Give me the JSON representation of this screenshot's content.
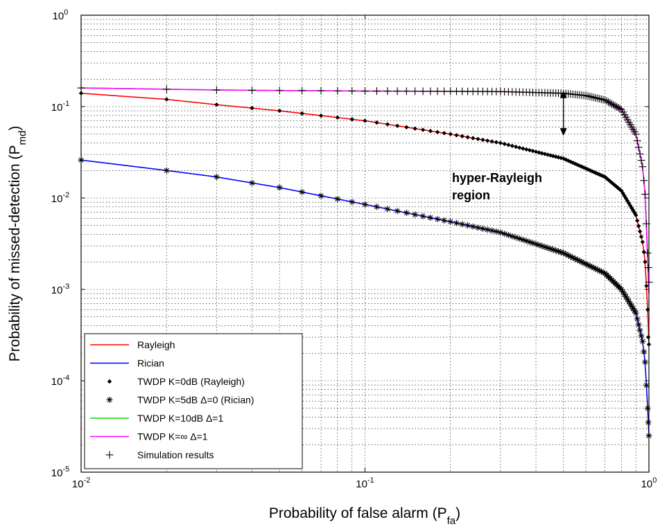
{
  "chart_data": {
    "type": "line",
    "xscale": "log",
    "yscale": "log",
    "xlim": [
      0.01,
      1
    ],
    "ylim": [
      1e-05,
      1
    ],
    "grid": true,
    "legend_position": "bottom-left",
    "xlabel_main": "Probability of false alarm (P",
    "xlabel_sub": "fa",
    "xlabel_end": ")",
    "ylabel_main": "Probability of missed-detection (P",
    "ylabel_sub": "md",
    "ylabel_end": ")",
    "x_ticks": [
      {
        "base": "10",
        "exp": "-2"
      },
      {
        "base": "10",
        "exp": "-1"
      },
      {
        "base": "10",
        "exp": "0"
      }
    ],
    "y_ticks": [
      {
        "base": "10",
        "exp": "0"
      },
      {
        "base": "10",
        "exp": "-1"
      },
      {
        "base": "10",
        "exp": "-2"
      },
      {
        "base": "10",
        "exp": "-3"
      },
      {
        "base": "10",
        "exp": "-4"
      },
      {
        "base": "10",
        "exp": "-5"
      }
    ],
    "annotation": {
      "line1": "hyper-Rayleigh",
      "line2": "region",
      "arrow_x": 0.5,
      "arrow_y_top": 0.15,
      "arrow_y_bottom": 0.048
    },
    "series": [
      {
        "name": "Rayleigh",
        "style": "line",
        "color": "#ff0000",
        "x": [
          0.01,
          0.02,
          0.03,
          0.05,
          0.1,
          0.2,
          0.3,
          0.5,
          0.7,
          0.8,
          0.9,
          0.95,
          0.97,
          0.99,
          0.995,
          1.0
        ],
        "y": [
          0.14,
          0.12,
          0.105,
          0.09,
          0.07,
          0.05,
          0.04,
          0.027,
          0.017,
          0.012,
          0.0065,
          0.0033,
          0.002,
          0.0006,
          0.0003,
          0.00025
        ]
      },
      {
        "name": "Rician",
        "style": "line",
        "color": "#0000ff",
        "x": [
          0.01,
          0.02,
          0.03,
          0.05,
          0.1,
          0.2,
          0.3,
          0.5,
          0.7,
          0.8,
          0.9,
          0.95,
          0.97,
          0.99,
          0.995,
          1.0
        ],
        "y": [
          0.026,
          0.02,
          0.017,
          0.013,
          0.0085,
          0.0055,
          0.0042,
          0.0025,
          0.0015,
          0.001,
          0.00055,
          0.00027,
          0.00016,
          5e-05,
          3.5e-05,
          2.5e-05
        ]
      },
      {
        "name": "TWDP K=0dB (Rayleigh)",
        "style": "marker",
        "marker": "dot",
        "color": "#000000",
        "x": [
          0.01,
          0.02,
          0.03,
          0.05,
          0.1,
          0.2,
          0.3,
          0.5,
          0.7,
          0.8,
          0.9,
          0.95,
          0.97,
          0.99,
          0.995,
          1.0
        ],
        "y": [
          0.14,
          0.12,
          0.105,
          0.09,
          0.07,
          0.05,
          0.04,
          0.027,
          0.017,
          0.012,
          0.0065,
          0.0033,
          0.002,
          0.0006,
          0.0003,
          0.00025
        ]
      },
      {
        "name": "TWDP K=5dB Δ=0 (Rician)",
        "style": "marker",
        "marker": "asterisk",
        "color": "#000000",
        "x": [
          0.01,
          0.02,
          0.03,
          0.05,
          0.1,
          0.2,
          0.3,
          0.5,
          0.7,
          0.8,
          0.9,
          0.95,
          0.97,
          0.99,
          0.995,
          1.0
        ],
        "y": [
          0.026,
          0.02,
          0.017,
          0.013,
          0.0085,
          0.0055,
          0.0042,
          0.0025,
          0.0015,
          0.001,
          0.00055,
          0.00027,
          0.00016,
          5e-05,
          3.5e-05,
          2.5e-05
        ]
      },
      {
        "name": "TWDP K=10dB Δ=1",
        "style": "line",
        "color": "#00dd00",
        "x": [
          0.01,
          0.02,
          0.03,
          0.05,
          0.1,
          0.2,
          0.3,
          0.5,
          0.6,
          0.7,
          0.8,
          0.9,
          0.95,
          0.97,
          0.99,
          1.0
        ],
        "y": [
          0.16,
          0.155,
          0.152,
          0.15,
          0.148,
          0.147,
          0.146,
          0.14,
          0.132,
          0.118,
          0.093,
          0.05,
          0.022,
          0.011,
          0.0025,
          0.0012
        ]
      },
      {
        "name": "TWDP K=∞ Δ=1",
        "style": "line",
        "color": "#ff00ff",
        "x": [
          0.01,
          0.02,
          0.03,
          0.05,
          0.1,
          0.2,
          0.3,
          0.5,
          0.6,
          0.7,
          0.8,
          0.9,
          0.95,
          0.97,
          0.99,
          1.0
        ],
        "y": [
          0.16,
          0.155,
          0.152,
          0.15,
          0.148,
          0.147,
          0.146,
          0.14,
          0.132,
          0.118,
          0.093,
          0.05,
          0.022,
          0.011,
          0.002,
          0.0009
        ]
      },
      {
        "name": "Simulation results",
        "style": "marker",
        "marker": "plus",
        "color": "#000000",
        "x": [
          0.01,
          0.02,
          0.03,
          0.05,
          0.1,
          0.2,
          0.3,
          0.5,
          0.6,
          0.7,
          0.8,
          0.9,
          0.95,
          0.97,
          0.99,
          1.0
        ],
        "y": [
          0.16,
          0.155,
          0.152,
          0.15,
          0.148,
          0.147,
          0.146,
          0.14,
          0.132,
          0.118,
          0.093,
          0.05,
          0.022,
          0.011,
          0.0025,
          0.0012
        ]
      }
    ]
  }
}
